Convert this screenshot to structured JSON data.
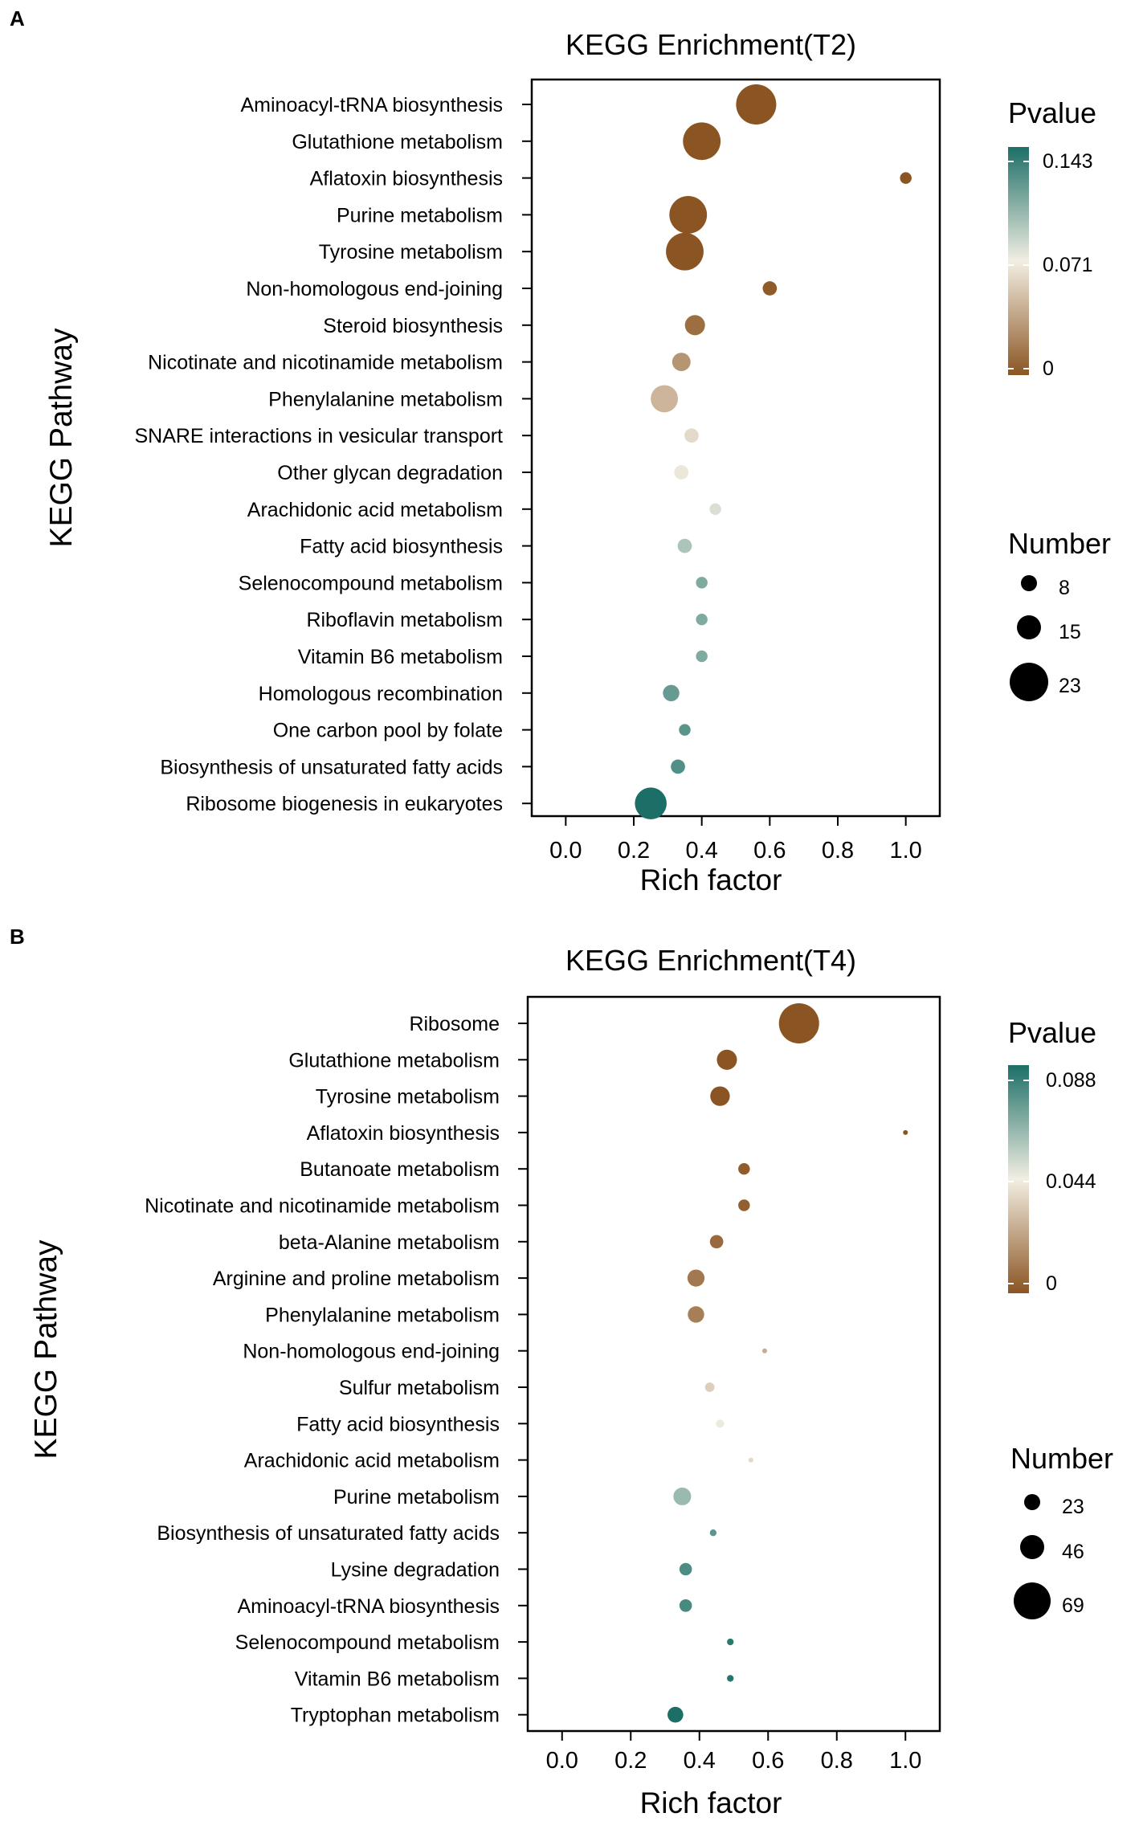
{
  "chart_data": [
    {
      "panel_label": "A",
      "type": "scatter",
      "title": "KEGG Enrichment(T2)",
      "xlabel": "Rich factor",
      "ylabel": "KEGG Pathway",
      "xlim": [
        -0.1,
        1.1
      ],
      "xticks": [
        "0.0",
        "0.2",
        "0.4",
        "0.6",
        "0.8",
        "1.0"
      ],
      "color_legend": {
        "title": "Pvalue",
        "ticks": [
          "0.143",
          "0.071",
          "0"
        ],
        "min": 0,
        "max": 0.143
      },
      "size_legend": {
        "title": "Number",
        "ticks": [
          "8",
          "15",
          "23"
        ],
        "max": 23
      },
      "colors": {
        "low": "#8b5523",
        "mid": "#f2eee2",
        "high": "#1c6f67"
      },
      "points": [
        {
          "pathway": "Aminoacyl-tRNA biosynthesis",
          "x": 0.56,
          "pvalue": 0.0,
          "number": 24
        },
        {
          "pathway": "Glutathione metabolism",
          "x": 0.4,
          "pvalue": 0.0,
          "number": 21
        },
        {
          "pathway": "Aflatoxin biosynthesis",
          "x": 1.0,
          "pvalue": 0.0,
          "number": 2
        },
        {
          "pathway": "Purine metabolism",
          "x": 0.36,
          "pvalue": 0.0,
          "number": 21
        },
        {
          "pathway": "Tyrosine metabolism",
          "x": 0.35,
          "pvalue": 0.0,
          "number": 21
        },
        {
          "pathway": "Non-homologous end-joining",
          "x": 0.6,
          "pvalue": 0.003,
          "number": 3
        },
        {
          "pathway": "Steroid biosynthesis",
          "x": 0.38,
          "pvalue": 0.012,
          "number": 6
        },
        {
          "pathway": "Nicotinate and nicotinamide metabolism",
          "x": 0.34,
          "pvalue": 0.03,
          "number": 5
        },
        {
          "pathway": "Phenylalanine metabolism",
          "x": 0.29,
          "pvalue": 0.045,
          "number": 11
        },
        {
          "pathway": "SNARE interactions in vesicular transport",
          "x": 0.37,
          "pvalue": 0.062,
          "number": 3
        },
        {
          "pathway": "Other glycan degradation",
          "x": 0.34,
          "pvalue": 0.068,
          "number": 3
        },
        {
          "pathway": "Arachidonic acid metabolism",
          "x": 0.44,
          "pvalue": 0.08,
          "number": 2
        },
        {
          "pathway": "Fatty acid biosynthesis",
          "x": 0.35,
          "pvalue": 0.095,
          "number": 3
        },
        {
          "pathway": "Selenocompound metabolism",
          "x": 0.4,
          "pvalue": 0.11,
          "number": 2
        },
        {
          "pathway": "Riboflavin metabolism",
          "x": 0.4,
          "pvalue": 0.11,
          "number": 2
        },
        {
          "pathway": "Vitamin B6 metabolism",
          "x": 0.4,
          "pvalue": 0.11,
          "number": 2
        },
        {
          "pathway": "Homologous recombination",
          "x": 0.31,
          "pvalue": 0.118,
          "number": 4
        },
        {
          "pathway": "One carbon pool by folate",
          "x": 0.35,
          "pvalue": 0.122,
          "number": 2
        },
        {
          "pathway": "Biosynthesis of unsaturated fatty acids",
          "x": 0.33,
          "pvalue": 0.125,
          "number": 3
        },
        {
          "pathway": "Ribosome biogenesis in eukaryotes",
          "x": 0.25,
          "pvalue": 0.143,
          "number": 15
        }
      ]
    },
    {
      "panel_label": "B",
      "type": "scatter",
      "title": "KEGG Enrichment(T4)",
      "xlabel": "Rich factor",
      "ylabel": "KEGG Pathway",
      "xlim": [
        -0.1,
        1.1
      ],
      "xticks": [
        "0.0",
        "0.2",
        "0.4",
        "0.6",
        "0.8",
        "1.0"
      ],
      "color_legend": {
        "title": "Pvalue",
        "ticks": [
          "0.088",
          "0.044",
          "0"
        ],
        "min": 0,
        "max": 0.088
      },
      "size_legend": {
        "title": "Number",
        "ticks": [
          "23",
          "46",
          "69"
        ],
        "max": 69
      },
      "colors": {
        "low": "#8b5523",
        "mid": "#f2eee2",
        "high": "#1c6f67"
      },
      "points": [
        {
          "pathway": "Ribosome",
          "x": 0.69,
          "pvalue": 0.0,
          "number": 72
        },
        {
          "pathway": "Glutathione metabolism",
          "x": 0.48,
          "pvalue": 0.0,
          "number": 18
        },
        {
          "pathway": "Tyrosine metabolism",
          "x": 0.46,
          "pvalue": 0.0,
          "number": 17
        },
        {
          "pathway": "Aflatoxin biosynthesis",
          "x": 1.0,
          "pvalue": 0.0,
          "number": 1
        },
        {
          "pathway": "Butanoate metabolism",
          "x": 0.53,
          "pvalue": 0.002,
          "number": 6
        },
        {
          "pathway": "Nicotinate and nicotinamide metabolism",
          "x": 0.53,
          "pvalue": 0.003,
          "number": 6
        },
        {
          "pathway": "beta-Alanine metabolism",
          "x": 0.45,
          "pvalue": 0.006,
          "number": 8
        },
        {
          "pathway": "Arginine and proline metabolism",
          "x": 0.39,
          "pvalue": 0.01,
          "number": 13
        },
        {
          "pathway": "Phenylalanine metabolism",
          "x": 0.39,
          "pvalue": 0.012,
          "number": 12
        },
        {
          "pathway": "Non-homologous end-joining",
          "x": 0.59,
          "pvalue": 0.025,
          "number": 1
        },
        {
          "pathway": "Sulfur metabolism",
          "x": 0.43,
          "pvalue": 0.035,
          "number": 4
        },
        {
          "pathway": "Fatty acid biosynthesis",
          "x": 0.46,
          "pvalue": 0.045,
          "number": 3
        },
        {
          "pathway": "Arachidonic acid metabolism",
          "x": 0.55,
          "pvalue": 0.038,
          "number": 1
        },
        {
          "pathway": "Purine metabolism",
          "x": 0.35,
          "pvalue": 0.062,
          "number": 14
        },
        {
          "pathway": "Biosynthesis of unsaturated fatty acids",
          "x": 0.44,
          "pvalue": 0.075,
          "number": 2
        },
        {
          "pathway": "Lysine degradation",
          "x": 0.36,
          "pvalue": 0.078,
          "number": 7
        },
        {
          "pathway": "Aminoacyl-tRNA biosynthesis",
          "x": 0.36,
          "pvalue": 0.079,
          "number": 7
        },
        {
          "pathway": "Selenocompound metabolism",
          "x": 0.49,
          "pvalue": 0.085,
          "number": 2
        },
        {
          "pathway": "Vitamin B6 metabolism",
          "x": 0.49,
          "pvalue": 0.086,
          "number": 2
        },
        {
          "pathway": "Tryptophan metabolism",
          "x": 0.33,
          "pvalue": 0.088,
          "number": 11
        }
      ]
    }
  ]
}
